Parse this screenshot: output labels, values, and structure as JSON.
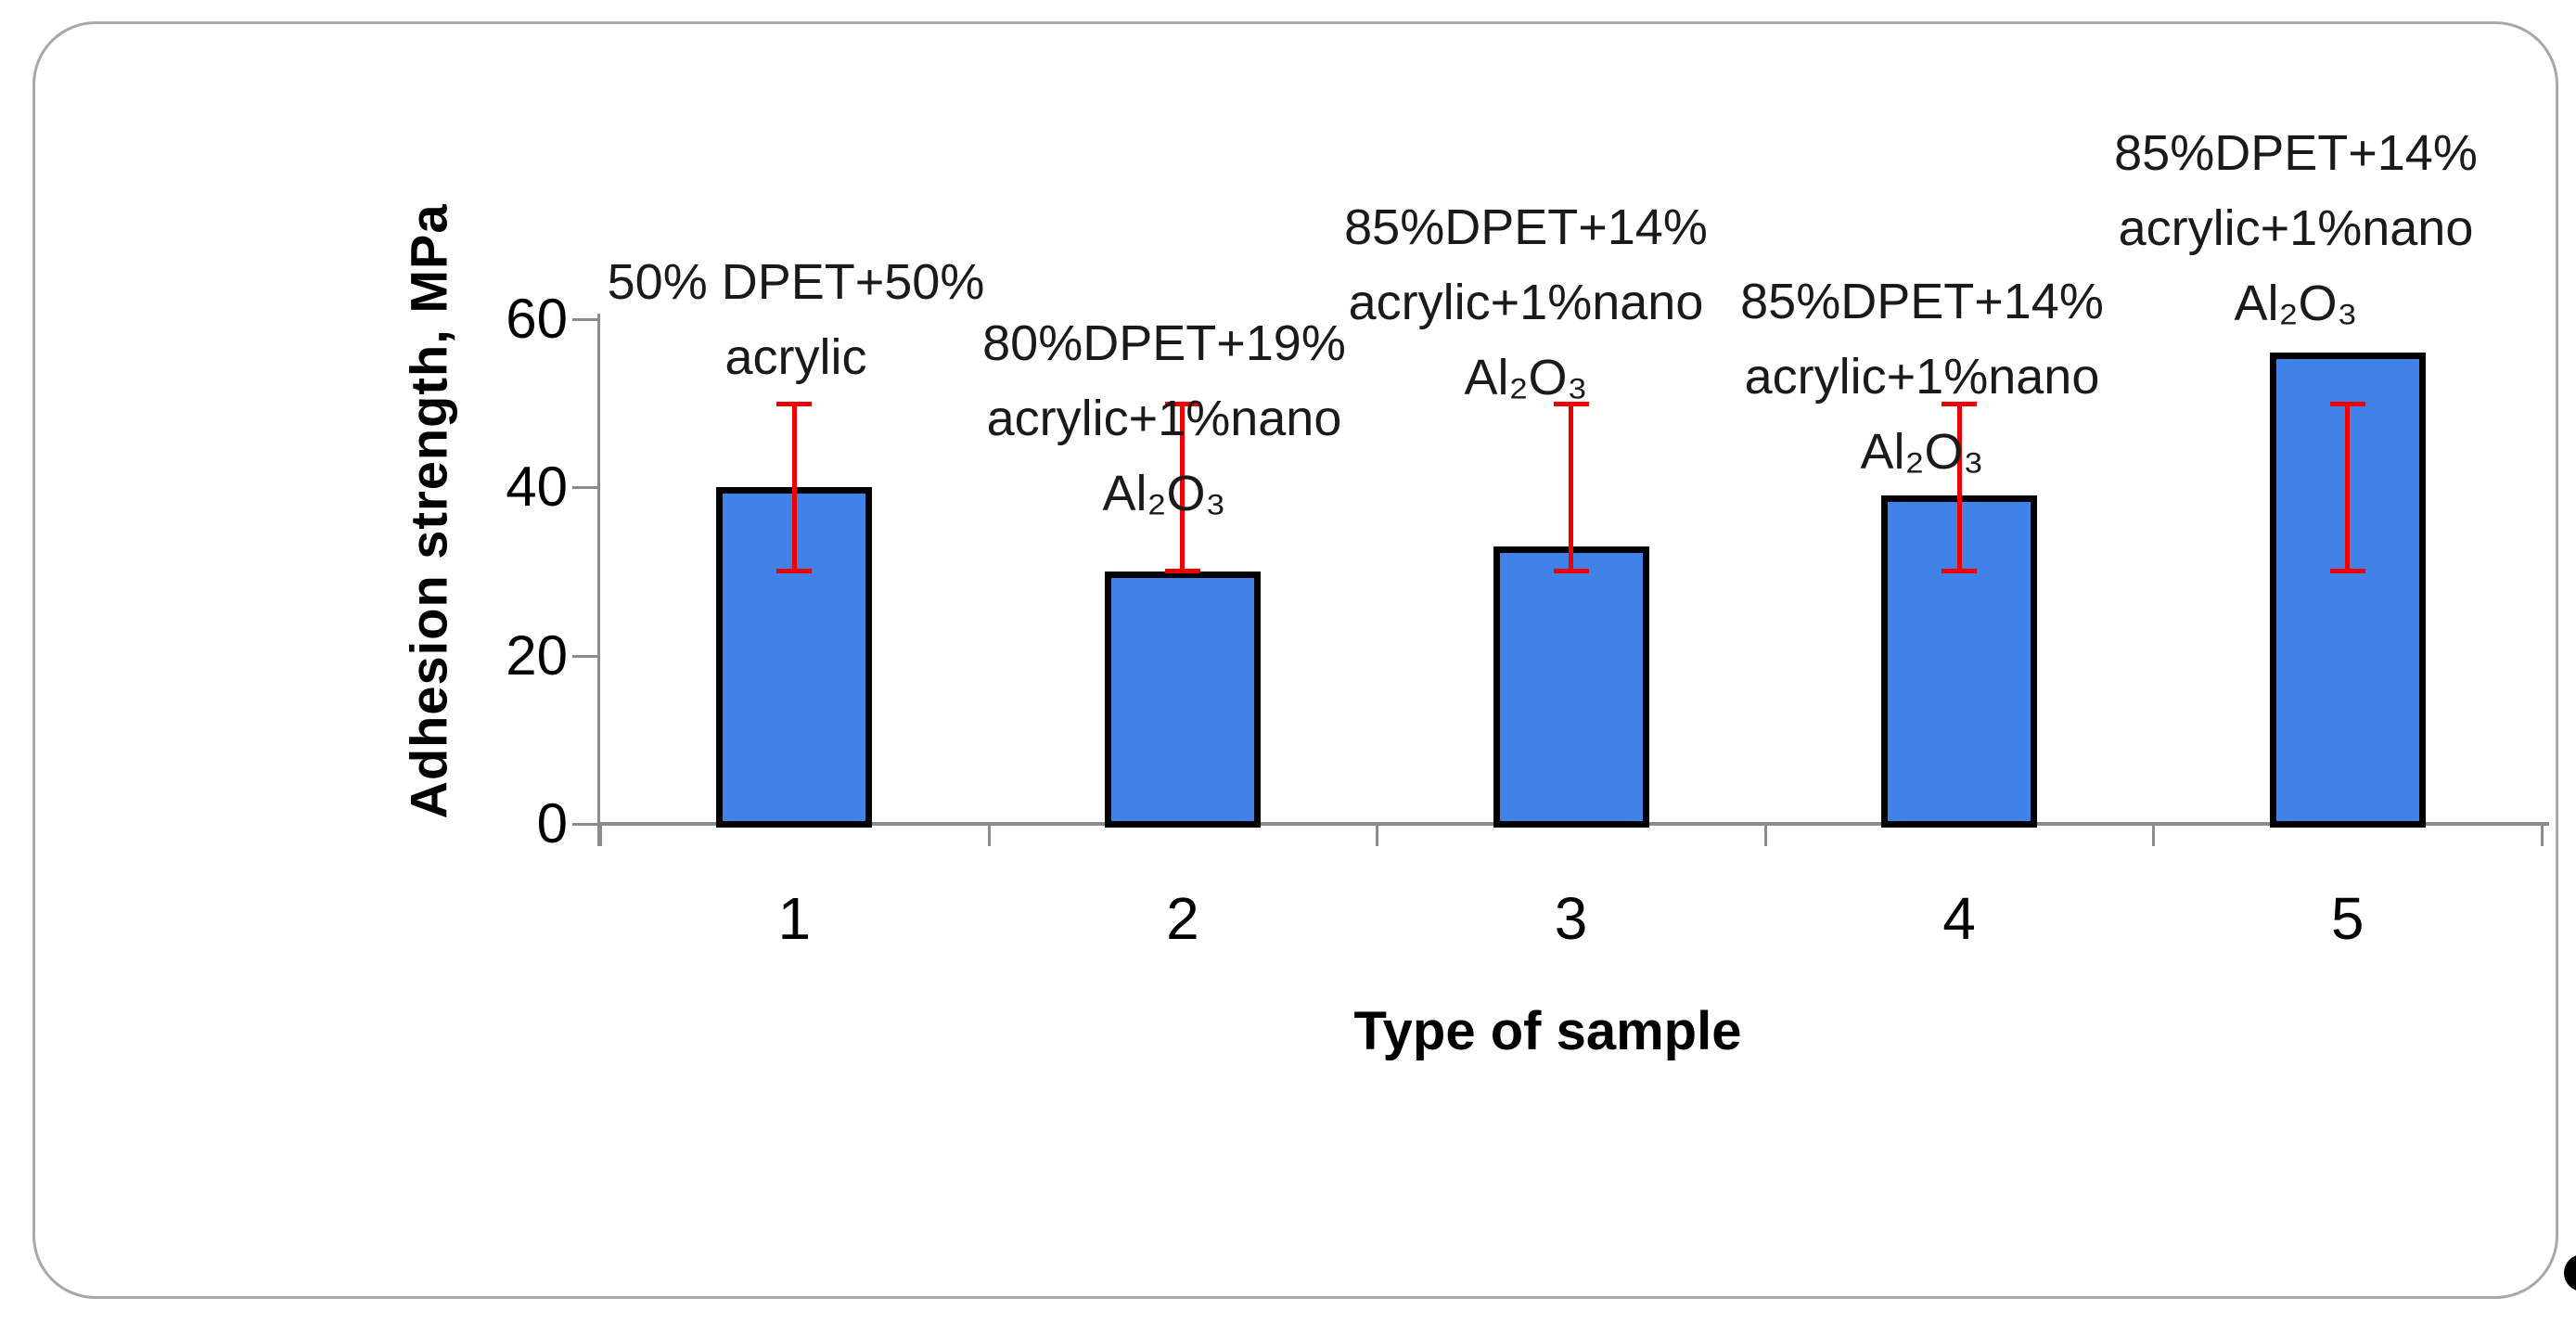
{
  "figure": {
    "background": "#ffffff",
    "border_color": "#a8a8a8"
  },
  "chart_data": {
    "type": "bar",
    "title": "",
    "xlabel": "Type of sample",
    "ylabel": "Adhesion strength, MPa",
    "categories": [
      "1",
      "2",
      "3",
      "4",
      "5"
    ],
    "values": [
      40,
      30,
      33,
      39,
      56
    ],
    "point_labels": [
      [
        "50% DPET+50%",
        "acrylic"
      ],
      [
        "80%DPET+19%",
        "acrylic+1%nano",
        "Al₂O₃"
      ],
      [
        "85%DPET+14%",
        "acrylic+1%nano",
        "Al₂O₃"
      ],
      [
        "85%DPET+14%",
        "acrylic+1%nano",
        "Al₂O₃"
      ],
      [
        "85%DPET+14%",
        "acrylic+1%nano",
        "Al₂O₃"
      ]
    ],
    "error_bars": [
      {
        "min": 30,
        "max": 50
      },
      {
        "min": 30,
        "max": 50
      },
      {
        "min": 30,
        "max": 50
      },
      {
        "min": 30,
        "max": 50
      },
      {
        "min": 30,
        "max": 50
      }
    ],
    "ylim": [
      0,
      60
    ],
    "yticks": [
      0,
      20,
      40,
      60
    ],
    "grid": false,
    "legend": "none",
    "bar_color": "#4182E8",
    "bar_border_color": "#000000",
    "error_color": "#ee0000",
    "axis_color": "#8b8b8b",
    "text_color": "#000000"
  }
}
